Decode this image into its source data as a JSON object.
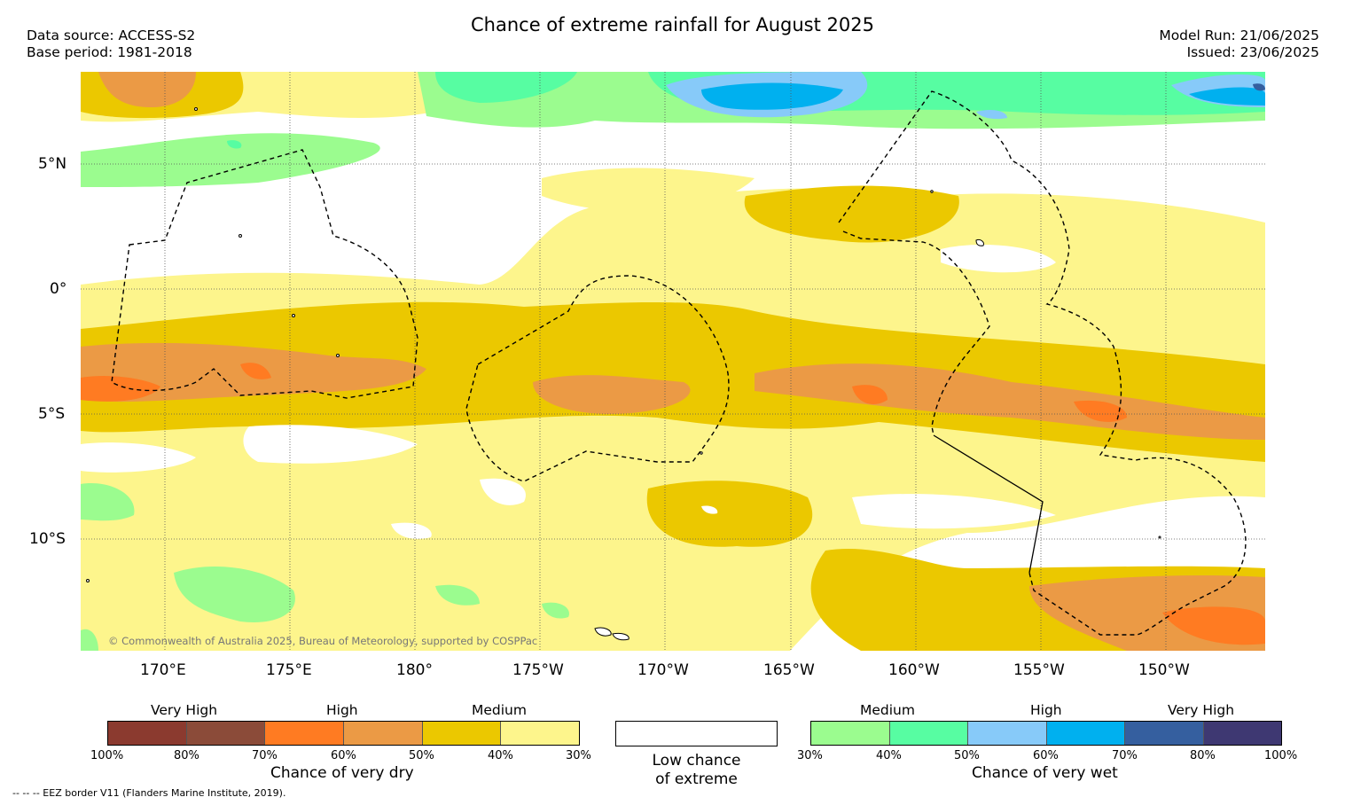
{
  "title": "Chance of extreme rainfall for August 2025",
  "data_source": "Data source: ACCESS-S2",
  "base_period": "Base period: 1981-2018",
  "model_run": "Model Run: 21/06/2025",
  "issued": "Issued: 23/06/2025",
  "copyright": "© Commonwealth of Australia 2025, Bureau of Meteorology, supported by COSPPac",
  "footnote": "--  --  -- EEZ border V11 (Flanders Marine Institute, 2019).",
  "lat_labels": [
    "5°N",
    "0°",
    "5°S",
    "10°S"
  ],
  "lon_labels": [
    "170°E",
    "175°E",
    "180°",
    "175°W",
    "170°W",
    "165°W",
    "160°W",
    "155°W",
    "150°W"
  ],
  "dry_legend": {
    "levels": [
      "Very High",
      "High",
      "Medium"
    ],
    "colors": [
      "#8b3a2f",
      "#8b4b39",
      "#ff7b22",
      "#eb9a45",
      "#ebc800",
      "#fdf58c"
    ],
    "ticks": [
      "100%",
      "80%",
      "70%",
      "60%",
      "50%",
      "40%",
      "30%"
    ],
    "caption": "Chance of very dry"
  },
  "low_legend": {
    "caption_line1": "Low chance",
    "caption_line2": "of extreme",
    "color": "#ffffff"
  },
  "wet_legend": {
    "levels": [
      "Medium",
      "High",
      "Very High"
    ],
    "colors": [
      "#9bfc8f",
      "#57fda2",
      "#87caf9",
      "#00b0ef",
      "#355f9f",
      "#3e3872"
    ],
    "ticks": [
      "30%",
      "40%",
      "50%",
      "60%",
      "70%",
      "80%",
      "100%"
    ],
    "caption": "Chance of very wet"
  }
}
